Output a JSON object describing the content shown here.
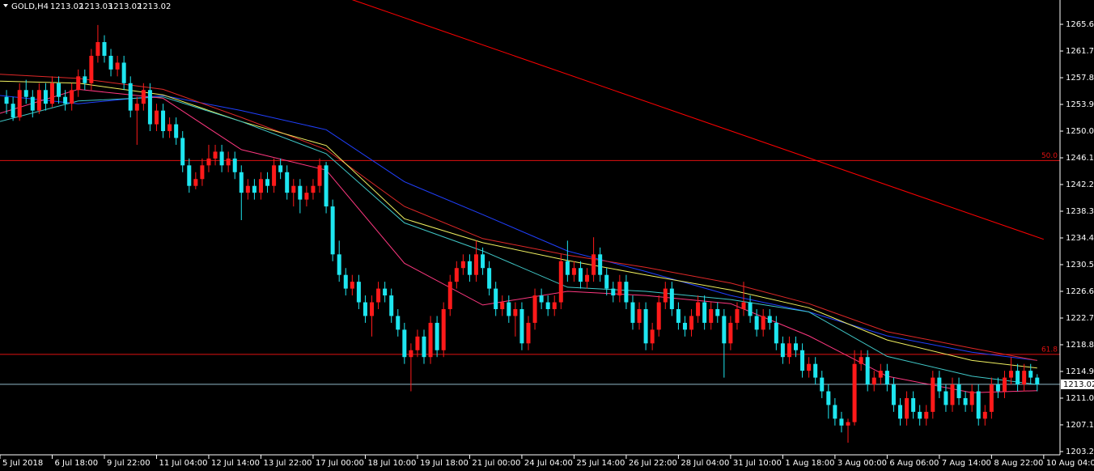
{
  "chart_data": {
    "type": "candlestick",
    "title": "GOLD,H4",
    "quote": [
      1213.02,
      1213.03,
      1213.02,
      1213.02
    ],
    "up_color": "#ff1a1a",
    "down_color": "#1ee6f0",
    "xlim": [
      -1,
      161.5
    ],
    "ylim": [
      1202.96,
      1269.15
    ],
    "yticks": [
      {
        "value": 1265.6,
        "label": "1265.60"
      },
      {
        "value": 1261.7,
        "label": "1261.70"
      },
      {
        "value": 1257.8,
        "label": "1257.80"
      },
      {
        "value": 1253.9,
        "label": "1253.90"
      },
      {
        "value": 1250,
        "label": "1250.00"
      },
      {
        "value": 1246.1,
        "label": "1246.10"
      },
      {
        "value": 1242.2,
        "label": "1242.20"
      },
      {
        "value": 1238.3,
        "label": "1238.30"
      },
      {
        "value": 1234.4,
        "label": "1234.40"
      },
      {
        "value": 1230.5,
        "label": "1230.50"
      },
      {
        "value": 1226.6,
        "label": "1226.60"
      },
      {
        "value": 1222.7,
        "label": "1222.70"
      },
      {
        "value": 1218.8,
        "label": "1218.80"
      },
      {
        "value": 1214.9,
        "label": "1214.90"
      },
      {
        "value": 1211,
        "label": "1211.00"
      },
      {
        "value": 1207.1,
        "label": "1207.10"
      },
      {
        "value": 1203.2,
        "label": "1203.20"
      }
    ],
    "xticks": [
      {
        "value": -1,
        "label": "5 Jul 2018"
      },
      {
        "value": 7,
        "label": "6 Jul 18:00"
      },
      {
        "value": 15,
        "label": "9 Jul 22:00"
      },
      {
        "value": 23,
        "label": "11 Jul 04:00"
      },
      {
        "value": 31,
        "label": "12 Jul 14:00"
      },
      {
        "value": 39,
        "label": "13 Jul 22:00"
      },
      {
        "value": 47,
        "label": "17 Jul 00:00"
      },
      {
        "value": 55,
        "label": "18 Jul 10:00"
      },
      {
        "value": 63,
        "label": "19 Jul 18:00"
      },
      {
        "value": 71,
        "label": "21 Jul 00:00"
      },
      {
        "value": 79,
        "label": "24 Jul 04:00"
      },
      {
        "value": 87,
        "label": "25 Jul 14:00"
      },
      {
        "value": 95,
        "label": "26 Jul 22:00"
      },
      {
        "value": 103,
        "label": "28 Jul 04:00"
      },
      {
        "value": 111,
        "label": "31 Jul 10:00"
      },
      {
        "value": 119,
        "label": "1 Aug 18:00"
      },
      {
        "value": 127,
        "label": "3 Aug 00:00"
      },
      {
        "value": 135,
        "label": "6 Aug 06:00"
      },
      {
        "value": 143,
        "label": "7 Aug 14:00"
      },
      {
        "value": 151,
        "label": "8 Aug 22:00"
      },
      {
        "value": 159,
        "label": "10 Aug 04:00"
      }
    ],
    "last_price": 1213.02,
    "last_price_color": "#8fb8c8",
    "levels": [
      {
        "value": 1245.7,
        "label": "50.0",
        "color": "#e01010"
      },
      {
        "value": 1217.4,
        "label": "61.8",
        "color": "#e01010"
      }
    ],
    "lines": [
      {
        "color": "#ff0000",
        "x": [
          53,
          159
        ],
        "values": [
          1269.2,
          1234.2
        ]
      },
      {
        "color": "#2040ff",
        "x": [
          -1,
          11,
          24,
          36,
          49,
          61,
          73,
          86,
          98,
          111,
          123,
          135,
          148,
          158
        ],
        "values": [
          1255.2,
          1254,
          1255.2,
          1253,
          1250.2,
          1242.6,
          1237.8,
          1232.5,
          1229.5,
          1226,
          1223.6,
          1220.1,
          1217.7,
          1216.5
        ]
      },
      {
        "color": "#e02828",
        "x": [
          -1,
          11,
          24,
          36,
          49,
          61,
          73,
          86,
          98,
          111,
          123,
          135,
          148,
          158
        ],
        "values": [
          1258.3,
          1257.7,
          1256.1,
          1252,
          1247.3,
          1239,
          1234.3,
          1231.9,
          1230.1,
          1227.8,
          1224.8,
          1220.7,
          1218.3,
          1216.5
        ]
      },
      {
        "color": "#f0f060",
        "x": [
          -1,
          11,
          24,
          36,
          49,
          61,
          73,
          86,
          98,
          111,
          123,
          135,
          148,
          158
        ],
        "values": [
          1257.3,
          1257,
          1255.3,
          1251.4,
          1247.9,
          1237.2,
          1233.7,
          1231.1,
          1229,
          1226.8,
          1224.2,
          1219.5,
          1216.5,
          1215.4
        ]
      },
      {
        "color": "#40c8c8",
        "x": [
          -1,
          11,
          24,
          36,
          49,
          61,
          73,
          86,
          98,
          111,
          123,
          135,
          148,
          158
        ],
        "values": [
          1251.4,
          1254.4,
          1255,
          1251.4,
          1246.7,
          1236.6,
          1232.5,
          1227.2,
          1226.6,
          1225.4,
          1223.6,
          1217.1,
          1214.2,
          1213
        ]
      },
      {
        "color": "#ff3880",
        "x": [
          -1,
          11,
          24,
          36,
          49,
          61,
          73,
          86,
          98,
          111,
          123,
          135,
          148,
          158
        ],
        "values": [
          1252.6,
          1256.1,
          1254.8,
          1247.3,
          1244.3,
          1230.7,
          1224.6,
          1226.6,
          1226,
          1224.8,
          1220.1,
          1214.2,
          1211.8,
          1212.1
        ]
      }
    ],
    "candles": [
      [
        1255,
        1256,
        1252.5,
        1254
      ],
      [
        1254,
        1255,
        1251.5,
        1252
      ],
      [
        1252,
        1257,
        1251.5,
        1256
      ],
      [
        1256,
        1257.5,
        1254,
        1255
      ],
      [
        1255,
        1256,
        1252,
        1253
      ],
      [
        1253,
        1257,
        1252.5,
        1256
      ],
      [
        1256,
        1257,
        1253,
        1254
      ],
      [
        1254,
        1258,
        1253.5,
        1257
      ],
      [
        1257,
        1258,
        1254,
        1255
      ],
      [
        1255,
        1256,
        1253,
        1254
      ],
      [
        1254,
        1257,
        1253,
        1256
      ],
      [
        1256,
        1259,
        1255,
        1258
      ],
      [
        1258,
        1259,
        1256,
        1257
      ],
      [
        1257,
        1262,
        1256,
        1261
      ],
      [
        1261,
        1265.5,
        1260,
        1263
      ],
      [
        1263,
        1264,
        1260,
        1261
      ],
      [
        1261,
        1262,
        1258,
        1259
      ],
      [
        1259,
        1261,
        1258,
        1260
      ],
      [
        1260,
        1261,
        1256,
        1257
      ],
      [
        1257,
        1258,
        1252,
        1253
      ],
      [
        1253,
        1255,
        1248,
        1254
      ],
      [
        1254,
        1257,
        1253,
        1256
      ],
      [
        1256,
        1257,
        1250,
        1251
      ],
      [
        1251,
        1254,
        1250,
        1253
      ],
      [
        1253,
        1254,
        1249,
        1250
      ],
      [
        1250,
        1252,
        1249,
        1251
      ],
      [
        1251,
        1252,
        1248,
        1249
      ],
      [
        1249,
        1250,
        1244,
        1245
      ],
      [
        1245,
        1246,
        1241,
        1242
      ],
      [
        1242,
        1244,
        1241.5,
        1243
      ],
      [
        1243,
        1246,
        1242,
        1245
      ],
      [
        1245,
        1248,
        1244,
        1246
      ],
      [
        1246,
        1248,
        1245,
        1247
      ],
      [
        1247,
        1248,
        1244,
        1245
      ],
      [
        1245,
        1247,
        1244,
        1246
      ],
      [
        1246,
        1247,
        1243,
        1244
      ],
      [
        1244,
        1245,
        1237,
        1241
      ],
      [
        1241,
        1243,
        1240,
        1242
      ],
      [
        1242,
        1243,
        1240,
        1241
      ],
      [
        1241,
        1244,
        1240,
        1243
      ],
      [
        1243,
        1244,
        1241,
        1242
      ],
      [
        1242,
        1246,
        1241,
        1245
      ],
      [
        1245,
        1246,
        1243,
        1244
      ],
      [
        1244,
        1245,
        1240,
        1241
      ],
      [
        1241,
        1243,
        1239,
        1242
      ],
      [
        1242,
        1243,
        1238,
        1240
      ],
      [
        1240,
        1242,
        1239,
        1241
      ],
      [
        1241,
        1243,
        1240,
        1242
      ],
      [
        1242,
        1246,
        1241,
        1245
      ],
      [
        1245,
        1245.5,
        1238,
        1239
      ],
      [
        1239,
        1240,
        1231,
        1232
      ],
      [
        1232,
        1234,
        1228,
        1229
      ],
      [
        1229,
        1230,
        1226,
        1227
      ],
      [
        1227,
        1229,
        1226,
        1228
      ],
      [
        1228,
        1229,
        1224,
        1225
      ],
      [
        1225,
        1226,
        1222,
        1223
      ],
      [
        1223,
        1226,
        1220,
        1225
      ],
      [
        1225,
        1228,
        1224,
        1227
      ],
      [
        1227,
        1228,
        1225,
        1226
      ],
      [
        1226,
        1227,
        1222,
        1223
      ],
      [
        1223,
        1224,
        1220,
        1221
      ],
      [
        1221,
        1222,
        1216,
        1217
      ],
      [
        1217,
        1219,
        1212,
        1218
      ],
      [
        1218,
        1221,
        1217,
        1220
      ],
      [
        1220,
        1221,
        1216,
        1217
      ],
      [
        1217,
        1223,
        1216,
        1222
      ],
      [
        1222,
        1223,
        1217,
        1218
      ],
      [
        1218,
        1225,
        1217,
        1224
      ],
      [
        1224,
        1229,
        1223,
        1228
      ],
      [
        1228,
        1231,
        1227,
        1230
      ],
      [
        1230,
        1232,
        1229,
        1231
      ],
      [
        1231,
        1232,
        1228,
        1229
      ],
      [
        1229,
        1234,
        1228,
        1232
      ],
      [
        1232,
        1233,
        1229,
        1230
      ],
      [
        1230,
        1231,
        1226,
        1227
      ],
      [
        1227,
        1228,
        1223,
        1224
      ],
      [
        1224,
        1226,
        1223,
        1225
      ],
      [
        1225,
        1226,
        1222,
        1223
      ],
      [
        1223,
        1225,
        1220,
        1224
      ],
      [
        1224,
        1225,
        1218,
        1219
      ],
      [
        1219,
        1223,
        1218,
        1222
      ],
      [
        1222,
        1227,
        1221,
        1226
      ],
      [
        1226,
        1227,
        1224,
        1225
      ],
      [
        1225,
        1226,
        1223,
        1224
      ],
      [
        1224,
        1226,
        1223,
        1225
      ],
      [
        1225,
        1232,
        1224,
        1231
      ],
      [
        1231,
        1234,
        1228,
        1229
      ],
      [
        1229,
        1231,
        1228,
        1230
      ],
      [
        1230,
        1231,
        1227,
        1228
      ],
      [
        1228,
        1230,
        1227,
        1229
      ],
      [
        1229,
        1234.5,
        1228,
        1232
      ],
      [
        1232,
        1233,
        1228,
        1229
      ],
      [
        1229,
        1230,
        1226,
        1227
      ],
      [
        1227,
        1228,
        1225,
        1226
      ],
      [
        1226,
        1229,
        1225,
        1228
      ],
      [
        1228,
        1229,
        1224,
        1225
      ],
      [
        1225,
        1226,
        1221,
        1222
      ],
      [
        1222,
        1225,
        1221,
        1224
      ],
      [
        1224,
        1225,
        1218,
        1219
      ],
      [
        1219,
        1222,
        1218,
        1221
      ],
      [
        1221,
        1226,
        1220,
        1225
      ],
      [
        1225,
        1228,
        1224,
        1227
      ],
      [
        1227,
        1228,
        1223,
        1224
      ],
      [
        1224,
        1225,
        1221,
        1222
      ],
      [
        1222,
        1223,
        1220,
        1221
      ],
      [
        1221,
        1224,
        1220,
        1223
      ],
      [
        1223,
        1226,
        1222,
        1225
      ],
      [
        1225,
        1226,
        1221,
        1222
      ],
      [
        1222,
        1225,
        1221,
        1224
      ],
      [
        1224,
        1225,
        1222,
        1223
      ],
      [
        1223,
        1224,
        1214,
        1219
      ],
      [
        1219,
        1223,
        1218,
        1222
      ],
      [
        1222,
        1225,
        1221,
        1224
      ],
      [
        1224,
        1228,
        1223,
        1225
      ],
      [
        1225,
        1226,
        1222,
        1223
      ],
      [
        1223,
        1224,
        1220,
        1221
      ],
      [
        1221,
        1224,
        1220,
        1223
      ],
      [
        1223,
        1224,
        1221,
        1222
      ],
      [
        1222,
        1223,
        1218,
        1219
      ],
      [
        1219,
        1220,
        1216,
        1217
      ],
      [
        1217,
        1220,
        1216,
        1219
      ],
      [
        1219,
        1220,
        1217,
        1218
      ],
      [
        1218,
        1219,
        1214,
        1215
      ],
      [
        1215,
        1217,
        1214,
        1216
      ],
      [
        1216,
        1217,
        1213,
        1214
      ],
      [
        1214,
        1215,
        1211,
        1212
      ],
      [
        1212,
        1213,
        1208,
        1210
      ],
      [
        1210,
        1211,
        1207,
        1208
      ],
      [
        1208,
        1209,
        1206,
        1207
      ],
      [
        1207,
        1208,
        1204.5,
        1207.5
      ],
      [
        1207.5,
        1218,
        1207,
        1216
      ],
      [
        1216,
        1218,
        1215,
        1217
      ],
      [
        1217,
        1218,
        1212,
        1213
      ],
      [
        1213,
        1215,
        1212,
        1214
      ],
      [
        1214,
        1216,
        1213,
        1215
      ],
      [
        1215,
        1216,
        1212,
        1213
      ],
      [
        1213,
        1214,
        1209,
        1210
      ],
      [
        1210,
        1211,
        1207,
        1208
      ],
      [
        1208,
        1212,
        1207,
        1211
      ],
      [
        1211,
        1212,
        1208,
        1209
      ],
      [
        1209,
        1210,
        1207,
        1208
      ],
      [
        1208,
        1210,
        1207,
        1209
      ],
      [
        1209,
        1215,
        1208,
        1214
      ],
      [
        1214,
        1215,
        1211,
        1212
      ],
      [
        1212,
        1213,
        1209,
        1210
      ],
      [
        1210,
        1214,
        1209,
        1213
      ],
      [
        1213,
        1214,
        1210,
        1211
      ],
      [
        1211,
        1212,
        1209,
        1210
      ],
      [
        1210,
        1213,
        1209,
        1212
      ],
      [
        1212,
        1213,
        1207,
        1208
      ],
      [
        1208,
        1210,
        1207,
        1209
      ],
      [
        1209,
        1214,
        1208,
        1213
      ],
      [
        1213,
        1214,
        1211,
        1212
      ],
      [
        1212,
        1215,
        1211,
        1214
      ],
      [
        1214,
        1217,
        1213,
        1215
      ],
      [
        1215,
        1216,
        1212,
        1213
      ],
      [
        1213,
        1216,
        1212,
        1215
      ],
      [
        1215,
        1216,
        1213,
        1214
      ],
      [
        1214,
        1214.5,
        1212,
        1213.02
      ]
    ]
  }
}
